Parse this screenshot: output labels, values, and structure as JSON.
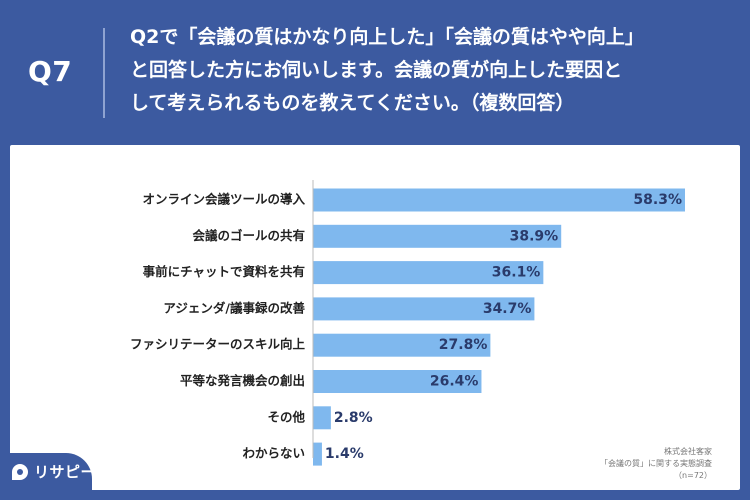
{
  "header": {
    "q_label": "Q7",
    "question": "Q2で「会議の質はかなり向上した」「会議の質はやや向上」\nと回答した方にお伺いします。会議の質が向上した要因と\nして考えられるものを教えてください。（複数回答）"
  },
  "chart_data": {
    "type": "bar",
    "orientation": "horizontal",
    "categories": [
      "オンライン会議ツールの導入",
      "会議のゴールの共有",
      "事前にチャットで資料を共有",
      "アジェンダ/議事録の改善",
      "ファシリテーターのスキル向上",
      "平等な発言機会の創出",
      "その他",
      "わからない"
    ],
    "values": [
      58.3,
      38.9,
      36.1,
      34.7,
      27.8,
      26.4,
      2.8,
      1.4
    ],
    "value_labels": [
      "58.3%",
      "38.9%",
      "36.1%",
      "34.7%",
      "27.8%",
      "26.4%",
      "2.8%",
      "1.4%"
    ],
    "xlim": [
      0,
      58.3
    ],
    "grid": false,
    "bar_color": "#7fb8ee"
  },
  "footnote": {
    "line1": "株式会社客家",
    "line2": "「会議の質」に関する実態調査",
    "line3": "（n=72）"
  },
  "logo": {
    "text": "リサピー"
  },
  "colors": {
    "background": "#3c5aa0",
    "bar": "#7fb8ee",
    "value_text": "#2a3b6b"
  }
}
